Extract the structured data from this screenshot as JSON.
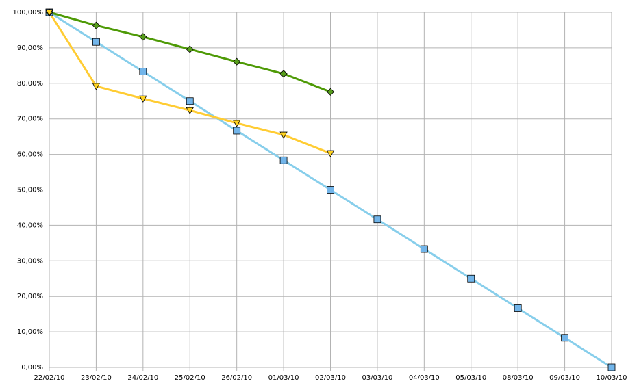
{
  "chart_data": {
    "type": "line",
    "categories": [
      "22/02/10",
      "23/02/10",
      "24/02/10",
      "25/02/10",
      "26/02/10",
      "01/03/10",
      "02/03/10",
      "03/03/10",
      "04/03/10",
      "05/03/10",
      "08/03/10",
      "09/03/10",
      "10/03/10"
    ],
    "series": [
      {
        "color": "#87ceeb",
        "marker_color": "#72b5ea",
        "marker": "square",
        "values": [
          100,
          91.67,
          83.33,
          75,
          66.67,
          58.33,
          50,
          41.67,
          33.33,
          25,
          16.67,
          8.33,
          0
        ]
      },
      {
        "color": "#4e9a06",
        "marker_color": "#579d1c",
        "marker": "diamond",
        "values": [
          100,
          96.3,
          93.1,
          89.6,
          86.1,
          82.7,
          77.6,
          null,
          null,
          null,
          null,
          null,
          null
        ]
      },
      {
        "color": "#ffcc33",
        "marker_color": "#ffd320",
        "marker": "triangle-down",
        "values": [
          100,
          79.2,
          75.7,
          72.4,
          68.8,
          65.5,
          60.3,
          null,
          null,
          null,
          null,
          null,
          null
        ]
      }
    ],
    "ylim": [
      0,
      100
    ],
    "yticks": [
      {
        "value": 0,
        "label": "0,00%"
      },
      {
        "value": 10,
        "label": "10,00%"
      },
      {
        "value": 20,
        "label": "20,00%"
      },
      {
        "value": 30,
        "label": "30,00%"
      },
      {
        "value": 40,
        "label": "40,00%"
      },
      {
        "value": 50,
        "label": "50,00%"
      },
      {
        "value": 60,
        "label": "60,00%"
      },
      {
        "value": 70,
        "label": "70,00%"
      },
      {
        "value": 80,
        "label": "80,00%"
      },
      {
        "value": 90,
        "label": "90,00%"
      },
      {
        "value": 100,
        "label": "100,00%"
      }
    ],
    "grid": true
  }
}
